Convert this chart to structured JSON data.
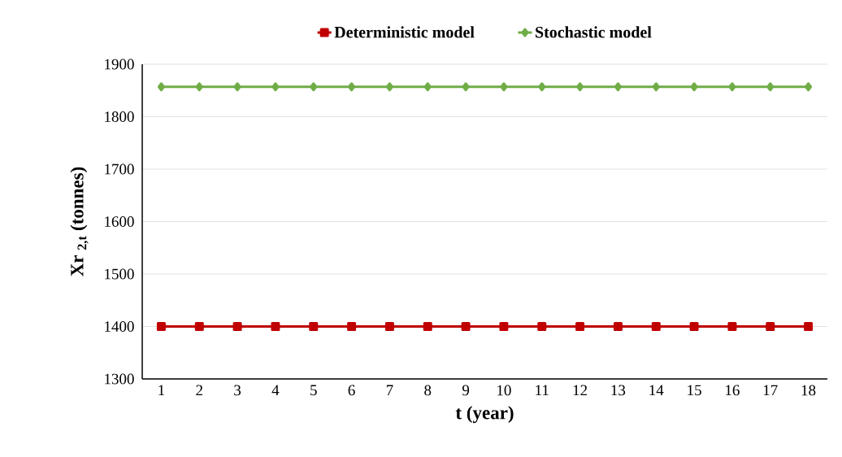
{
  "chart_data": {
    "type": "line",
    "xlabel": "t (year)",
    "ylabel": "Xr $_{2,t}$ (tonnes)",
    "categories": [
      "1",
      "2",
      "3",
      "4",
      "5",
      "6",
      "7",
      "8",
      "9",
      "10",
      "11",
      "12",
      "13",
      "14",
      "15",
      "16",
      "17",
      "18"
    ],
    "series": [
      {
        "name": "Deterministic model",
        "color": "#c00000",
        "marker": "square",
        "values": [
          1400,
          1400,
          1400,
          1400,
          1400,
          1400,
          1400,
          1400,
          1400,
          1400,
          1400,
          1400,
          1400,
          1400,
          1400,
          1400,
          1400,
          1400
        ]
      },
      {
        "name": "Stochastic model",
        "color": "#70ad47",
        "marker": "diamond",
        "values": [
          1857,
          1857,
          1857,
          1857,
          1857,
          1857,
          1857,
          1857,
          1857,
          1857,
          1857,
          1857,
          1857,
          1857,
          1857,
          1857,
          1857,
          1857
        ]
      }
    ],
    "ylim": [
      1300,
      1900
    ],
    "yticks": [
      1300,
      1400,
      1500,
      1600,
      1700,
      1800,
      1900
    ],
    "grid": "y",
    "legend": "top"
  }
}
